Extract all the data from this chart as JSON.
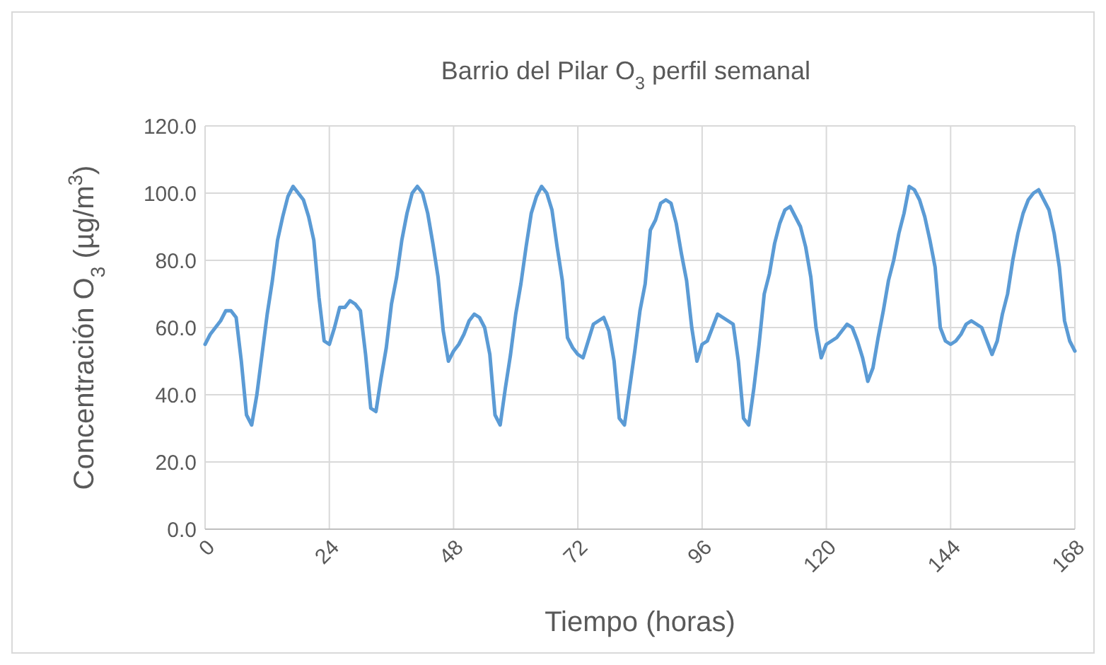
{
  "chart_data": {
    "type": "line",
    "title": "Barrio del Pilar O$_{3}$ perfil semanal",
    "xlabel": "Tiempo (horas)",
    "ylabel": "Concentración O$_{3}$ (µg/m$^{3}$)",
    "x": [
      0,
      1,
      2,
      3,
      4,
      5,
      6,
      7,
      8,
      9,
      10,
      11,
      12,
      13,
      14,
      15,
      16,
      17,
      18,
      19,
      20,
      21,
      22,
      23,
      24,
      25,
      26,
      27,
      28,
      29,
      30,
      31,
      32,
      33,
      34,
      35,
      36,
      37,
      38,
      39,
      40,
      41,
      42,
      43,
      44,
      45,
      46,
      47,
      48,
      49,
      50,
      51,
      52,
      53,
      54,
      55,
      56,
      57,
      58,
      59,
      60,
      61,
      62,
      63,
      64,
      65,
      66,
      67,
      68,
      69,
      70,
      71,
      72,
      73,
      74,
      75,
      76,
      77,
      78,
      79,
      80,
      81,
      82,
      83,
      84,
      85,
      86,
      87,
      88,
      89,
      90,
      91,
      92,
      93,
      94,
      95,
      96,
      97,
      98,
      99,
      100,
      101,
      102,
      103,
      104,
      105,
      106,
      107,
      108,
      109,
      110,
      111,
      112,
      113,
      114,
      115,
      116,
      117,
      118,
      119,
      120,
      121,
      122,
      123,
      124,
      125,
      126,
      127,
      128,
      129,
      130,
      131,
      132,
      133,
      134,
      135,
      136,
      137,
      138,
      139,
      140,
      141,
      142,
      143,
      144,
      145,
      146,
      147,
      148,
      149,
      150,
      151,
      152,
      153,
      154,
      155,
      156,
      157,
      158,
      159,
      160,
      161,
      162,
      163,
      164,
      165,
      166,
      167,
      168
    ],
    "series": [
      {
        "color": "#5b9bd5",
        "values": [
          55,
          58,
          60,
          62,
          65,
          65,
          63,
          50,
          34,
          31,
          40,
          52,
          64,
          74,
          86,
          93,
          99,
          102,
          100,
          98,
          93,
          86,
          69,
          56,
          55,
          60,
          66,
          66,
          68,
          67,
          65,
          52,
          36,
          35,
          45,
          54,
          67,
          75,
          86,
          94,
          100,
          102,
          100,
          94,
          85,
          75,
          59,
          50,
          53,
          55,
          58,
          62,
          64,
          63,
          60,
          52,
          34,
          31,
          42,
          52,
          64,
          73,
          84,
          94,
          99,
          102,
          100,
          95,
          84,
          74,
          57,
          54,
          52,
          51,
          56,
          61,
          62,
          63,
          59,
          50,
          33,
          31,
          42,
          53,
          65,
          73,
          89,
          92,
          97,
          98,
          97,
          91,
          82,
          74,
          60,
          50,
          55,
          56,
          60,
          64,
          63,
          62,
          61,
          50,
          33,
          31,
          42,
          55,
          70,
          76,
          85,
          91,
          95,
          96,
          93,
          90,
          84,
          75,
          60,
          51,
          55,
          56,
          57,
          59,
          61,
          60,
          56,
          51,
          44,
          48,
          57,
          65,
          74,
          80,
          88,
          94,
          102,
          101,
          98,
          93,
          86,
          78,
          60,
          56,
          55,
          56,
          58,
          61,
          62,
          61,
          60,
          56,
          52,
          56,
          64,
          70,
          80,
          88,
          94,
          98,
          100,
          101,
          98,
          95,
          88,
          78,
          62,
          56,
          53
        ]
      }
    ],
    "xlim": [
      0,
      168
    ],
    "xticks": [
      0,
      24,
      48,
      72,
      96,
      120,
      144,
      168
    ],
    "ylim": [
      0,
      120
    ],
    "yticks": [
      {
        "value": 0,
        "label": "0.0"
      },
      {
        "value": 20,
        "label": "20.0"
      },
      {
        "value": 40,
        "label": "40.0"
      },
      {
        "value": 60,
        "label": "60.0"
      },
      {
        "value": 80,
        "label": "80.0"
      },
      {
        "value": 100,
        "label": "100.0"
      },
      {
        "value": 120,
        "label": "120.0"
      }
    ],
    "grid": true,
    "line_style": "solid",
    "marker": "none"
  }
}
